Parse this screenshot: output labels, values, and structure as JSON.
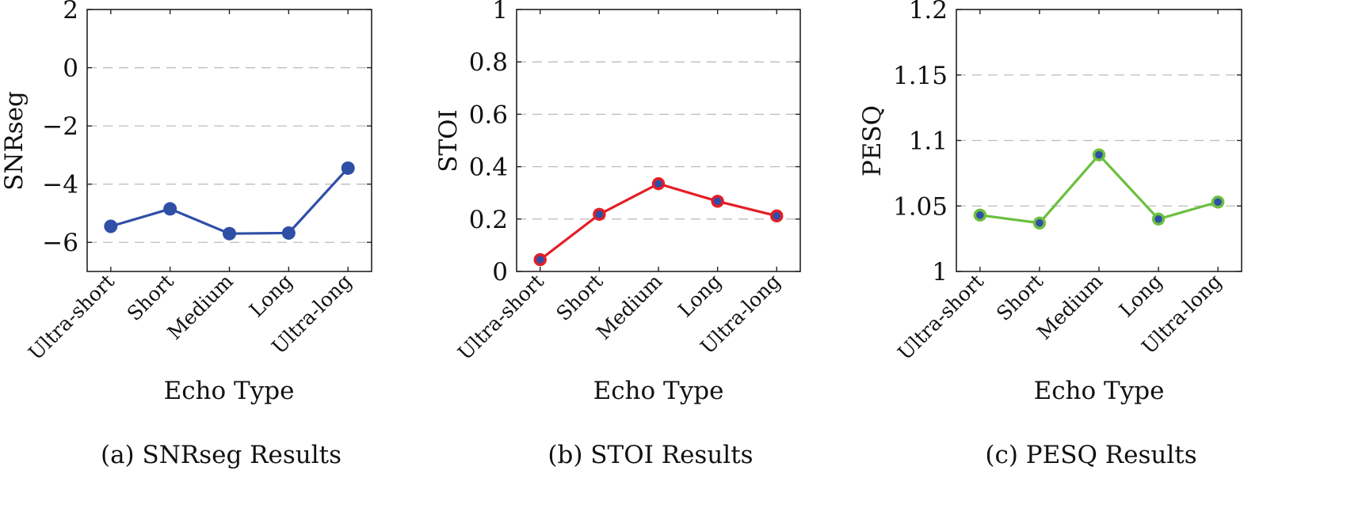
{
  "chart_data": [
    {
      "type": "line",
      "caption": "(a) SNRseg Results",
      "xlabel": "Echo Type",
      "ylabel": "SNRseg",
      "categories": [
        "Ultra-short",
        "Short",
        "Medium",
        "Long",
        "Ultra-long"
      ],
      "yticks": [
        "2",
        "0",
        "−2",
        "−4",
        "−6"
      ],
      "ytick_values": [
        2,
        0,
        -2,
        -4,
        -6
      ],
      "ylim": [
        -7,
        2
      ],
      "grid": "horizontal dashed",
      "marker": "filled circle",
      "series": [
        {
          "values": [
            -5.45,
            -4.85,
            -5.7,
            -5.68,
            -3.45
          ],
          "color": "#2f4fa6",
          "marker_fill": "#2f4fa6",
          "marker_edge": "#2f4fa6"
        }
      ]
    },
    {
      "type": "line",
      "caption": "(b) STOI Results",
      "xlabel": "Echo Type",
      "ylabel": "STOI",
      "categories": [
        "Ultra-short",
        "Short",
        "Medium",
        "Long",
        "Ultra-long"
      ],
      "yticks": [
        "1",
        "0.8",
        "0.6",
        "0.4",
        "0.2",
        "0"
      ],
      "ytick_values": [
        1,
        0.8,
        0.6,
        0.4,
        0.2,
        0
      ],
      "ylim": [
        0,
        1
      ],
      "grid": "horizontal dashed",
      "marker": "circle with outline",
      "series": [
        {
          "values": [
            0.045,
            0.218,
            0.335,
            0.268,
            0.212
          ],
          "color": "#e41e26",
          "marker_fill": "#2f4fa6",
          "marker_edge": "#e41e26"
        }
      ]
    },
    {
      "type": "line",
      "caption": "(c) PESQ Results",
      "xlabel": "Echo Type",
      "ylabel": "PESQ",
      "categories": [
        "Ultra-short",
        "Short",
        "Medium",
        "Long",
        "Ultra-long"
      ],
      "yticks": [
        "1.2",
        "1.15",
        "1.1",
        "1.05",
        "1"
      ],
      "ytick_values": [
        1.2,
        1.15,
        1.1,
        1.05,
        1
      ],
      "ylim": [
        1,
        1.2
      ],
      "grid": "horizontal dashed",
      "marker": "circle with outline",
      "series": [
        {
          "values": [
            1.043,
            1.037,
            1.089,
            1.04,
            1.053
          ],
          "color": "#6cbf3f",
          "marker_fill": "#2f4fa6",
          "marker_edge": "#6cbf3f"
        }
      ]
    }
  ]
}
